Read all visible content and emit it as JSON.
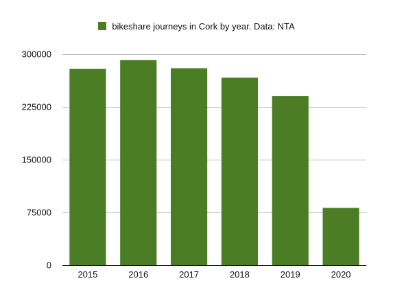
{
  "chart_data": {
    "type": "bar",
    "title": "",
    "xlabel": "",
    "ylabel": "",
    "categories": [
      "2015",
      "2016",
      "2017",
      "2018",
      "2019",
      "2020"
    ],
    "series": [
      {
        "name": "bikeshare journeys in Cork by year. Data: NTA",
        "values": [
          279000,
          291500,
          280000,
          266500,
          240500,
          81500
        ]
      }
    ],
    "ylim": [
      0,
      300000
    ],
    "yticks": [
      0,
      75000,
      150000,
      225000,
      300000
    ],
    "grid": true,
    "legend_position": "top-center",
    "colors": {
      "bar": "#4a7d24",
      "grid": "#bdbdbd",
      "axis": "#111111"
    }
  }
}
